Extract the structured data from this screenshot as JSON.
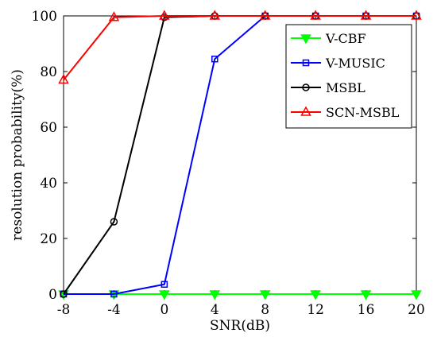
{
  "chart_data": {
    "type": "line",
    "xlabel": "SNR(dB)",
    "ylabel": "resolution probability(%)",
    "x": [
      -8,
      -4,
      0,
      4,
      8,
      12,
      16,
      20
    ],
    "xlim": [
      -8,
      20
    ],
    "ylim": [
      0,
      100
    ],
    "xticks": [
      -8,
      -4,
      0,
      4,
      8,
      12,
      16,
      20
    ],
    "yticks": [
      0,
      20,
      40,
      60,
      80,
      100
    ],
    "grid": false,
    "legend_position": "top-right",
    "series": [
      {
        "name": "V-CBF",
        "color": "#00ff00",
        "marker": "triangle-down",
        "values": [
          0,
          0,
          0,
          0,
          0,
          0,
          0,
          0
        ]
      },
      {
        "name": "V-MUSIC",
        "color": "#0000ff",
        "marker": "square",
        "values": [
          0,
          0,
          3.5,
          84.5,
          100,
          100,
          100,
          100
        ]
      },
      {
        "name": "MSBL",
        "color": "#000000",
        "marker": "circle",
        "values": [
          0,
          26,
          99.5,
          100,
          100,
          100,
          100,
          100
        ]
      },
      {
        "name": "SCN-MSBL",
        "color": "#ff0000",
        "marker": "triangle-up",
        "values": [
          77,
          99.5,
          100,
          100,
          100,
          100,
          100,
          100
        ]
      }
    ]
  }
}
